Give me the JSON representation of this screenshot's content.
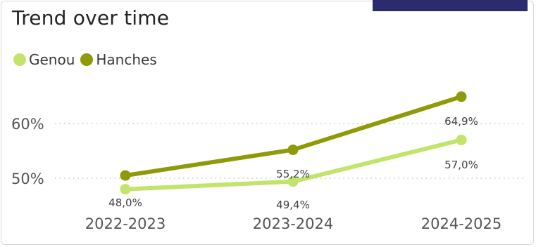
{
  "title": "Trend over time",
  "colors": {
    "accent": "#2b2b6e",
    "genou": "#c2e46c",
    "hanches": "#8f9a08",
    "grid": "#bdbdbd"
  },
  "chart_data": {
    "type": "line",
    "categories": [
      "2022-2023",
      "2023-2024",
      "2024-2025"
    ],
    "series": [
      {
        "name": "Genou",
        "values": [
          48.0,
          49.4,
          57.0
        ],
        "labels": [
          "48,0%",
          "49,4%",
          "57,0%"
        ]
      },
      {
        "name": "Hanches",
        "values": [
          50.5,
          55.2,
          64.9
        ],
        "labels": [
          "",
          "55,2%",
          "64,9%"
        ]
      }
    ],
    "yticks": [
      {
        "value": 50,
        "label": "50%"
      },
      {
        "value": 60,
        "label": "60%"
      }
    ],
    "ylim": [
      40,
      70
    ],
    "grid": true,
    "legend_position": "top-left"
  }
}
